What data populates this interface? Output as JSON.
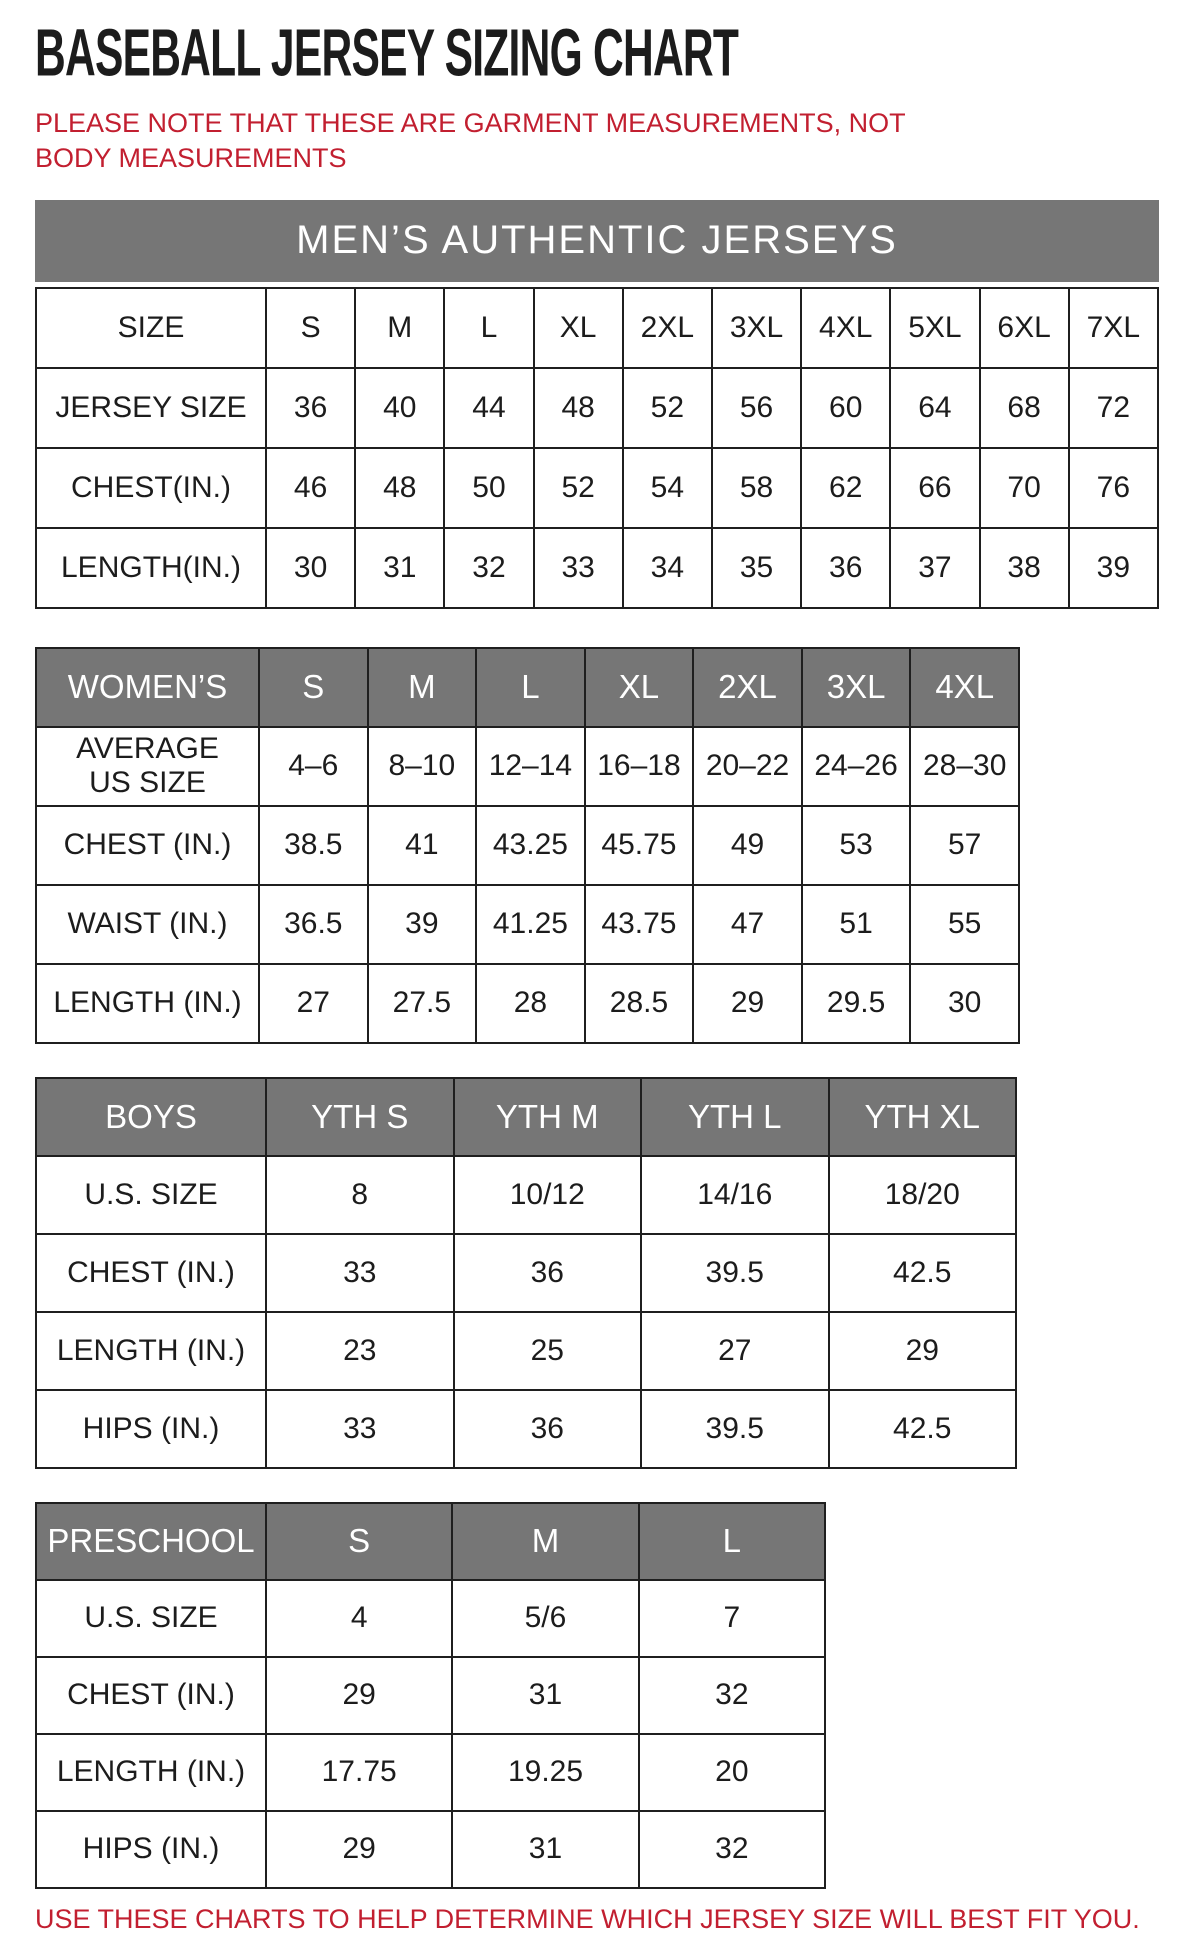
{
  "page": {
    "title": "BASEBALL JERSEY SIZING CHART",
    "note": "PLEASE NOTE THAT THESE ARE GARMENT MEASUREMENTS, NOT BODY MEASUREMENTS",
    "footer": "USE THESE CHARTS TO HELP DETERMINE WHICH JERSEY SIZE WILL BEST FIT YOU."
  },
  "colors": {
    "header_gray": "#767676",
    "accent_red": "#c21f30",
    "border_black": "#1f1f1f"
  },
  "tables": [
    {
      "id": "mens-authentic-jerseys",
      "band_title": "MEN’S AUTHENTIC JERSEYS",
      "columns": [
        "SIZE",
        "S",
        "M",
        "L",
        "XL",
        "2XL",
        "3XL",
        "4XL",
        "5XL",
        "6XL",
        "7XL"
      ],
      "rows": [
        {
          "label": "JERSEY SIZE",
          "values": [
            "36",
            "40",
            "44",
            "48",
            "52",
            "56",
            "60",
            "64",
            "68",
            "72"
          ]
        },
        {
          "label": "CHEST(IN.)",
          "values": [
            "46",
            "48",
            "50",
            "52",
            "54",
            "58",
            "62",
            "66",
            "70",
            "76"
          ]
        },
        {
          "label": "LENGTH(IN.)",
          "values": [
            "30",
            "31",
            "32",
            "33",
            "34",
            "35",
            "36",
            "37",
            "38",
            "39"
          ]
        }
      ]
    },
    {
      "id": "womens",
      "columns": [
        "WOMEN’S",
        "S",
        "M",
        "L",
        "XL",
        "2XL",
        "3XL",
        "4XL"
      ],
      "rows": [
        {
          "label": "AVERAGE\nUS SIZE",
          "values": [
            "4–6",
            "8–10",
            "12–14",
            "16–18",
            "20–22",
            "24–26",
            "28–30"
          ]
        },
        {
          "label": "CHEST (IN.)",
          "values": [
            "38.5",
            "41",
            "43.25",
            "45.75",
            "49",
            "53",
            "57"
          ]
        },
        {
          "label": "WAIST (IN.)",
          "values": [
            "36.5",
            "39",
            "41.25",
            "43.75",
            "47",
            "51",
            "55"
          ]
        },
        {
          "label": "LENGTH (IN.)",
          "values": [
            "27",
            "27.5",
            "28",
            "28.5",
            "29",
            "29.5",
            "30"
          ]
        }
      ]
    },
    {
      "id": "boys",
      "columns": [
        "BOYS",
        "YTH S",
        "YTH M",
        "YTH L",
        "YTH XL"
      ],
      "rows": [
        {
          "label": "U.S. SIZE",
          "values": [
            "8",
            "10/12",
            "14/16",
            "18/20"
          ]
        },
        {
          "label": "CHEST (IN.)",
          "values": [
            "33",
            "36",
            "39.5",
            "42.5"
          ]
        },
        {
          "label": "LENGTH (IN.)",
          "values": [
            "23",
            "25",
            "27",
            "29"
          ]
        },
        {
          "label": "HIPS (IN.)",
          "values": [
            "33",
            "36",
            "39.5",
            "42.5"
          ]
        }
      ]
    },
    {
      "id": "preschool",
      "columns": [
        "PRESCHOOL",
        "S",
        "M",
        "L"
      ],
      "rows": [
        {
          "label": "U.S. SIZE",
          "values": [
            "4",
            "5/6",
            "7"
          ]
        },
        {
          "label": "CHEST (IN.)",
          "values": [
            "29",
            "31",
            "32"
          ]
        },
        {
          "label": "LENGTH (IN.)",
          "values": [
            "17.75",
            "19.25",
            "20"
          ]
        },
        {
          "label": "HIPS (IN.)",
          "values": [
            "29",
            "31",
            "32"
          ]
        }
      ]
    }
  ]
}
